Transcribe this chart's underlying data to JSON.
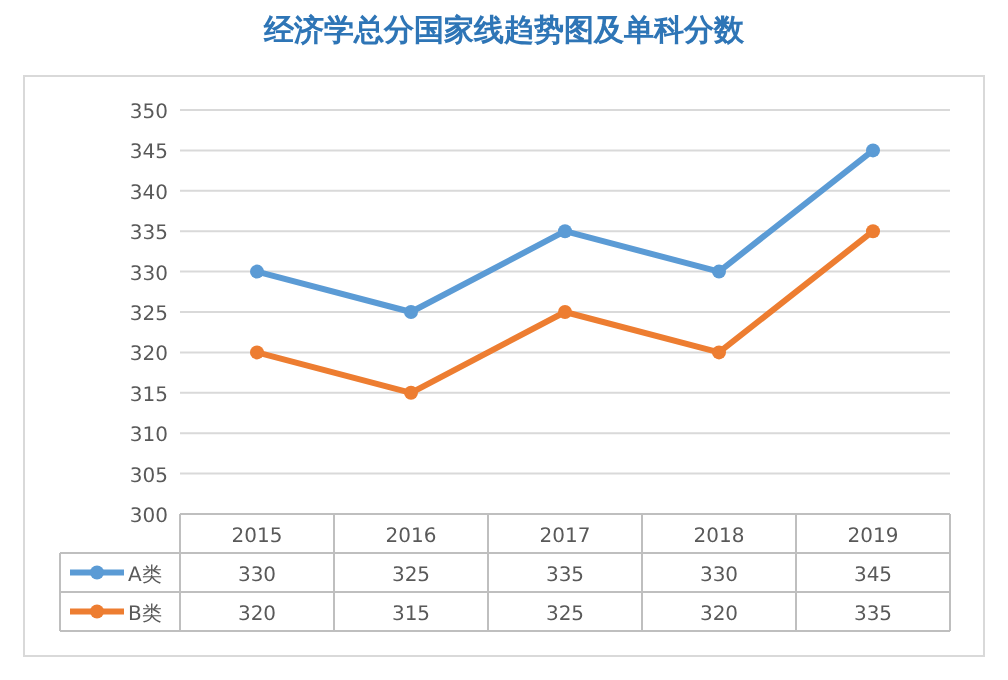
{
  "chart_data": {
    "type": "line",
    "title": "经济学总分国家线趋势图及单科分数",
    "categories": [
      "2015",
      "2016",
      "2017",
      "2018",
      "2019"
    ],
    "series": [
      {
        "name": "A类",
        "color": "#5b9bd5",
        "values": [
          330,
          325,
          335,
          330,
          345
        ]
      },
      {
        "name": "B类",
        "color": "#ed7d31",
        "values": [
          320,
          315,
          325,
          320,
          335
        ]
      }
    ],
    "ylim": [
      300,
      350
    ],
    "yticks": [
      300,
      305,
      310,
      315,
      320,
      325,
      330,
      335,
      340,
      345,
      350
    ],
    "grid": "y",
    "marker": "circle",
    "line_style": "solid",
    "legend": "bottom",
    "data_labels": true
  }
}
